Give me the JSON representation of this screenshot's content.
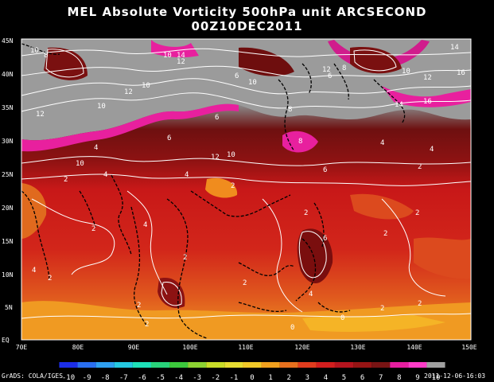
{
  "title_line1": "MEL Absolute Vorticity 500hPa unit ARCSECOND",
  "title_line2": "00Z10DEC2011",
  "lat_labels": [
    "EQ",
    "5N",
    "10N",
    "15N",
    "20N",
    "25N",
    "30N",
    "35N",
    "40N",
    "45N"
  ],
  "lon_labels": [
    "70E",
    "80E",
    "90E",
    "100E",
    "110E",
    "120E",
    "130E",
    "140E",
    "150E"
  ],
  "colorbar": {
    "labels": [
      "-10",
      "-9",
      "-8",
      "-7",
      "-6",
      "-5",
      "-4",
      "-3",
      "-2",
      "-1",
      "0",
      "1",
      "2",
      "3",
      "4",
      "5",
      "6",
      "7",
      "8",
      "9",
      "10"
    ],
    "colors": [
      "#1c2ee8",
      "#2a6ff0",
      "#2fa0f0",
      "#25c8e0",
      "#1ee0b8",
      "#28d27a",
      "#3cc83c",
      "#8cd232",
      "#c8dc28",
      "#e6dc32",
      "#f0c828",
      "#f0a01e",
      "#e6701e",
      "#e03c1e",
      "#d21e1e",
      "#b4141e",
      "#961414",
      "#781414",
      "#e61ea0",
      "#ff3cc8",
      "#a0a0a0"
    ]
  },
  "contour_labels": [
    "10",
    "8",
    "12",
    "14",
    "16",
    "6",
    "4",
    "2",
    "0"
  ],
  "footer_left": "GrADS: COLA/IGES",
  "footer_right": "2011-12-06-16:03"
}
